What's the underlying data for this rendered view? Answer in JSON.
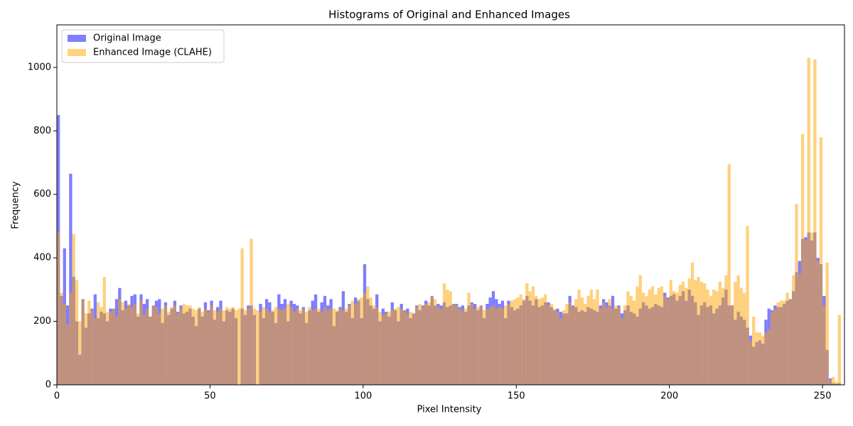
{
  "chart_data": {
    "type": "histogram",
    "title": "Histograms of Original and Enhanced Images",
    "xlabel": "Pixel Intensity",
    "ylabel": "Frequency",
    "bins": [
      0,
      1,
      2,
      3,
      4,
      5,
      6,
      7,
      8,
      9,
      10,
      11,
      12,
      13,
      14,
      15,
      16,
      17,
      18,
      19,
      20,
      21,
      22,
      23,
      24,
      25,
      26,
      27,
      28,
      29,
      30,
      31,
      32,
      33,
      34,
      35,
      36,
      37,
      38,
      39,
      40,
      41,
      42,
      43,
      44,
      45,
      46,
      47,
      48,
      49,
      50,
      51,
      52,
      53,
      54,
      55,
      56,
      57,
      58,
      59,
      60,
      61,
      62,
      63,
      64,
      65,
      66,
      67,
      68,
      69,
      70,
      71,
      72,
      73,
      74,
      75,
      76,
      77,
      78,
      79,
      80,
      81,
      82,
      83,
      84,
      85,
      86,
      87,
      88,
      89,
      90,
      91,
      92,
      93,
      94,
      95,
      96,
      97,
      98,
      99,
      100,
      101,
      102,
      103,
      104,
      105,
      106,
      107,
      108,
      109,
      110,
      111,
      112,
      113,
      114,
      115,
      116,
      117,
      118,
      119,
      120,
      121,
      122,
      123,
      124,
      125,
      126,
      127,
      128,
      129,
      130,
      131,
      132,
      133,
      134,
      135,
      136,
      137,
      138,
      139,
      140,
      141,
      142,
      143,
      144,
      145,
      146,
      147,
      148,
      149,
      150,
      151,
      152,
      153,
      154,
      155,
      156,
      157,
      158,
      159,
      160,
      161,
      162,
      163,
      164,
      165,
      166,
      167,
      168,
      169,
      170,
      171,
      172,
      173,
      174,
      175,
      176,
      177,
      178,
      179,
      180,
      181,
      182,
      183,
      184,
      185,
      186,
      187,
      188,
      189,
      190,
      191,
      192,
      193,
      194,
      195,
      196,
      197,
      198,
      199,
      200,
      201,
      202,
      203,
      204,
      205,
      206,
      207,
      208,
      209,
      210,
      211,
      212,
      213,
      214,
      215,
      216,
      217,
      218,
      219,
      220,
      221,
      222,
      223,
      224,
      225,
      226,
      227,
      228,
      229,
      230,
      231,
      232,
      233,
      234,
      235,
      236,
      237,
      238,
      239,
      240,
      241,
      242,
      243,
      244,
      245,
      246,
      247,
      248,
      249,
      250,
      251,
      252,
      253,
      254,
      255,
      256
    ],
    "series": [
      {
        "name": "Original Image",
        "color": "#0000ff",
        "opacity": 0.5,
        "values": [
          850,
          280,
          430,
          250,
          665,
          340,
          200,
          95,
          270,
          180,
          225,
          240,
          285,
          210,
          230,
          225,
          200,
          240,
          240,
          270,
          305,
          235,
          265,
          250,
          280,
          285,
          215,
          285,
          255,
          270,
          215,
          250,
          265,
          270,
          195,
          260,
          220,
          240,
          265,
          230,
          250,
          225,
          230,
          240,
          215,
          185,
          240,
          215,
          260,
          235,
          265,
          205,
          245,
          265,
          200,
          235,
          230,
          240,
          210,
          0,
          240,
          220,
          250,
          250,
          220,
          0,
          255,
          210,
          270,
          260,
          230,
          195,
          285,
          255,
          270,
          200,
          265,
          255,
          250,
          225,
          245,
          195,
          235,
          265,
          285,
          230,
          260,
          280,
          250,
          270,
          185,
          230,
          245,
          295,
          230,
          255,
          210,
          275,
          265,
          210,
          380,
          270,
          250,
          240,
          285,
          200,
          240,
          230,
          215,
          260,
          235,
          200,
          255,
          235,
          240,
          210,
          225,
          250,
          235,
          250,
          265,
          250,
          280,
          250,
          255,
          250,
          260,
          245,
          250,
          255,
          255,
          245,
          250,
          230,
          250,
          260,
          255,
          235,
          250,
          210,
          255,
          275,
          295,
          270,
          255,
          265,
          210,
          265,
          245,
          235,
          240,
          250,
          265,
          280,
          265,
          250,
          270,
          245,
          250,
          260,
          260,
          245,
          235,
          240,
          230,
          225,
          225,
          280,
          250,
          245,
          230,
          235,
          230,
          245,
          240,
          235,
          230,
          250,
          270,
          260,
          250,
          280,
          240,
          250,
          225,
          235,
          250,
          230,
          225,
          215,
          240,
          260,
          250,
          240,
          245,
          255,
          250,
          245,
          290,
          275,
          280,
          285,
          265,
          280,
          295,
          265,
          300,
          280,
          260,
          220,
          250,
          260,
          245,
          250,
          225,
          240,
          250,
          275,
          300,
          250,
          250,
          205,
          230,
          215,
          205,
          180,
          155,
          120,
          135,
          140,
          130,
          205,
          240,
          235,
          250,
          245,
          245,
          255,
          265,
          270,
          295,
          355,
          390,
          460,
          465,
          480,
          455,
          480,
          400,
          380,
          280,
          110,
          20,
          5,
          3,
          5
        ]
      },
      {
        "name": "Enhanced Image (CLAHE)",
        "color": "#ffa500",
        "opacity": 0.5,
        "values": [
          480,
          290,
          255,
          190,
          290,
          475,
          330,
          200,
          270,
          225,
          265,
          235,
          210,
          260,
          245,
          340,
          230,
          230,
          240,
          215,
          270,
          260,
          240,
          255,
          245,
          255,
          225,
          265,
          220,
          240,
          215,
          250,
          245,
          225,
          240,
          250,
          230,
          245,
          250,
          225,
          240,
          255,
          250,
          250,
          240,
          235,
          245,
          230,
          240,
          230,
          250,
          235,
          230,
          240,
          235,
          245,
          240,
          245,
          235,
          240,
          430,
          235,
          240,
          460,
          240,
          235,
          230,
          245,
          240,
          230,
          235,
          245,
          240,
          235,
          240,
          255,
          245,
          230,
          240,
          235,
          240,
          230,
          245,
          235,
          240,
          240,
          230,
          245,
          235,
          240,
          240,
          235,
          240,
          235,
          240,
          250,
          265,
          255,
          270,
          275,
          290,
          310,
          275,
          250,
          245,
          230,
          220,
          225,
          230,
          235,
          240,
          245,
          240,
          235,
          225,
          230,
          225,
          245,
          255,
          245,
          255,
          260,
          280,
          270,
          245,
          240,
          320,
          300,
          295,
          255,
          250,
          240,
          235,
          240,
          290,
          255,
          240,
          245,
          250,
          235,
          240,
          245,
          250,
          240,
          245,
          240,
          250,
          255,
          265,
          270,
          275,
          285,
          270,
          320,
          295,
          310,
          280,
          270,
          275,
          285,
          250,
          255,
          240,
          230,
          210,
          235,
          255,
          260,
          245,
          270,
          300,
          275,
          255,
          280,
          300,
          270,
          300,
          240,
          260,
          245,
          270,
          240,
          250,
          245,
          210,
          250,
          295,
          280,
          265,
          310,
          345,
          290,
          280,
          300,
          310,
          285,
          305,
          310,
          280,
          270,
          330,
          295,
          290,
          315,
          325,
          305,
          335,
          385,
          330,
          340,
          325,
          320,
          300,
          280,
          300,
          295,
          325,
          305,
          345,
          695,
          250,
          325,
          345,
          305,
          290,
          500,
          140,
          215,
          165,
          165,
          155,
          165,
          175,
          230,
          240,
          260,
          265,
          265,
          290,
          270,
          345,
          570,
          350,
          790,
          455,
          1030,
          480,
          1025,
          390,
          780,
          250,
          385,
          15,
          25,
          10,
          220
        ]
      }
    ],
    "xlim": [
      0,
      256
    ],
    "xticks": [
      0,
      50,
      100,
      150,
      200,
      250
    ],
    "ylim": [
      0,
      1134
    ],
    "yticks": [
      0,
      200,
      400,
      600,
      800,
      1000
    ],
    "legend": "upper left"
  }
}
